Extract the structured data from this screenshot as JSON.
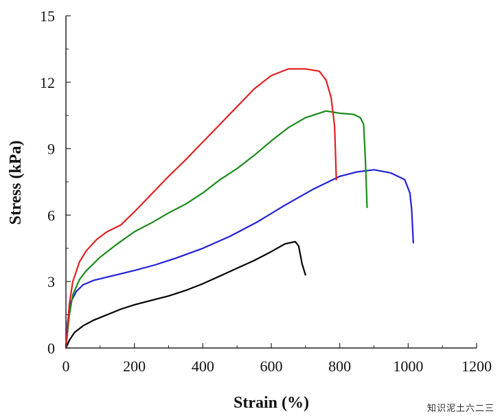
{
  "chart_data": {
    "type": "line",
    "title": "",
    "xlabel": "Strain (%)",
    "ylabel": "Stress (kPa)",
    "xlim": [
      0,
      1200
    ],
    "ylim": [
      0,
      15
    ],
    "xticks": [
      0,
      200,
      400,
      600,
      800,
      1000,
      1200
    ],
    "yticks": [
      0,
      3,
      6,
      9,
      12,
      15
    ],
    "grid": false,
    "legend": "none",
    "series": [
      {
        "color": "#000000",
        "x": [
          0,
          10,
          25,
          50,
          80,
          120,
          160,
          200,
          250,
          300,
          350,
          400,
          450,
          500,
          550,
          600,
          640,
          670,
          680,
          690,
          700
        ],
        "y": [
          0,
          0.35,
          0.7,
          1.0,
          1.25,
          1.5,
          1.75,
          1.95,
          2.15,
          2.35,
          2.6,
          2.9,
          3.25,
          3.6,
          3.95,
          4.35,
          4.7,
          4.8,
          4.6,
          3.8,
          3.3
        ]
      },
      {
        "color": "#2020d8",
        "x": [
          0,
          5,
          15,
          30,
          50,
          80,
          120,
          160,
          200,
          260,
          320,
          400,
          480,
          560,
          640,
          720,
          800,
          850,
          900,
          950,
          990,
          1005,
          1010,
          1015
        ],
        "y": [
          0,
          1.2,
          2.1,
          2.55,
          2.85,
          3.05,
          3.2,
          3.35,
          3.5,
          3.75,
          4.05,
          4.5,
          5.05,
          5.7,
          6.45,
          7.15,
          7.75,
          7.95,
          8.05,
          7.9,
          7.6,
          7.0,
          6.3,
          4.75
        ]
      },
      {
        "color": "#1a8a1a",
        "x": [
          0,
          10,
          20,
          40,
          60,
          100,
          150,
          200,
          250,
          300,
          350,
          400,
          450,
          500,
          550,
          600,
          650,
          700,
          760,
          800,
          840,
          860,
          870,
          875,
          880
        ],
        "y": [
          0,
          1.5,
          2.4,
          3.1,
          3.5,
          4.1,
          4.7,
          5.25,
          5.65,
          6.1,
          6.5,
          7.0,
          7.6,
          8.1,
          8.7,
          9.35,
          9.95,
          10.4,
          10.7,
          10.6,
          10.55,
          10.4,
          10.1,
          8.5,
          6.35
        ]
      },
      {
        "color": "#e02020",
        "x": [
          0,
          10,
          20,
          40,
          60,
          90,
          120,
          140,
          160,
          200,
          250,
          300,
          350,
          400,
          450,
          500,
          550,
          600,
          650,
          700,
          740,
          760,
          775,
          785,
          790
        ],
        "y": [
          0,
          2.0,
          3.0,
          3.9,
          4.4,
          4.9,
          5.25,
          5.4,
          5.55,
          6.15,
          6.95,
          7.75,
          8.5,
          9.3,
          10.1,
          10.9,
          11.7,
          12.3,
          12.6,
          12.6,
          12.5,
          12.1,
          11.3,
          10.0,
          7.6
        ]
      }
    ]
  },
  "watermark": "知识泥土六二三"
}
